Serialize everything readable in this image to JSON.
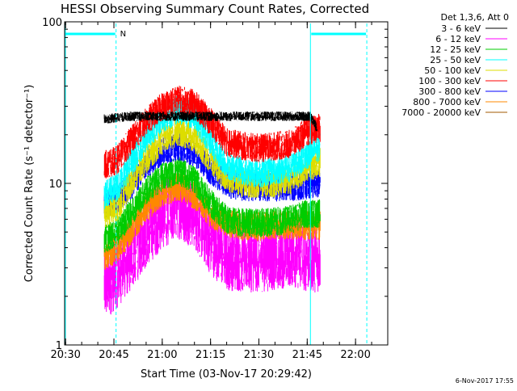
{
  "chart_data": {
    "type": "line",
    "title": "HESSI Observing Summary Count Rates, Corrected",
    "xlabel": "Start Time (03-Nov-17 20:29:42)",
    "ylabel": "Corrected Count Rate (s⁻¹ detector⁻¹)",
    "y_scale": "log",
    "ylim": [
      1,
      100
    ],
    "xlim": [
      "20:29:42",
      "22:10:00"
    ],
    "x_ticks": [
      "20:30",
      "20:45",
      "21:00",
      "21:15",
      "21:30",
      "21:45",
      "22:00"
    ],
    "y_ticks": [
      "1",
      "10",
      "100"
    ],
    "legend_title": "Det 1,3,6, Att 0",
    "legend_position": "right-outside",
    "annotation_n": "N",
    "night_intervals": [
      [
        "20:29:42",
        "20:45:40"
      ],
      [
        "21:46:00",
        "22:03:30"
      ]
    ],
    "night_markers": [
      "20:45:40",
      "21:46:00",
      "22:03:30"
    ],
    "series": [
      {
        "name": "3 - 6 keV",
        "color": "#000000",
        "points": [
          [
            "20:42:00",
            25
          ],
          [
            "20:50:00",
            26
          ],
          [
            "21:00:00",
            26
          ],
          [
            "21:10:00",
            26
          ],
          [
            "21:20:00",
            26
          ],
          [
            "21:30:00",
            26
          ],
          [
            "21:40:00",
            26
          ],
          [
            "21:46:00",
            26
          ],
          [
            "21:48:00",
            22
          ]
        ]
      },
      {
        "name": "6 - 12 keV",
        "color": "#ff00ff",
        "points": [
          [
            "20:42:00",
            2.3
          ],
          [
            "20:46:00",
            2.8
          ],
          [
            "20:50:00",
            3.5
          ],
          [
            "20:55:00",
            5
          ],
          [
            "21:00:00",
            6.5
          ],
          [
            "21:05:00",
            7.5
          ],
          [
            "21:10:00",
            6.5
          ],
          [
            "21:15:00",
            4.5
          ],
          [
            "21:20:00",
            3.6
          ],
          [
            "21:25:00",
            3.5
          ],
          [
            "21:30:00",
            3.5
          ],
          [
            "21:35:00",
            3.6
          ],
          [
            "21:40:00",
            3.8
          ],
          [
            "21:45:00",
            3.5
          ],
          [
            "21:49:00",
            3.5
          ]
        ]
      },
      {
        "name": "12 - 25 keV",
        "color": "#00cc00",
        "points": [
          [
            "20:42:00",
            4.5
          ],
          [
            "20:46:00",
            5
          ],
          [
            "20:50:00",
            6.5
          ],
          [
            "20:55:00",
            9
          ],
          [
            "21:00:00",
            11
          ],
          [
            "21:05:00",
            12
          ],
          [
            "21:10:00",
            10.5
          ],
          [
            "21:15:00",
            7.5
          ],
          [
            "21:20:00",
            6
          ],
          [
            "21:25:00",
            5.7
          ],
          [
            "21:30:00",
            5.7
          ],
          [
            "21:35:00",
            5.8
          ],
          [
            "21:40:00",
            6
          ],
          [
            "21:45:00",
            6.5
          ],
          [
            "21:49:00",
            6.5
          ]
        ]
      },
      {
        "name": "25 - 50 keV",
        "color": "#00ffff",
        "points": [
          [
            "20:42:00",
            8.5
          ],
          [
            "20:46:00",
            9.5
          ],
          [
            "20:50:00",
            13
          ],
          [
            "20:55:00",
            19
          ],
          [
            "21:00:00",
            25
          ],
          [
            "21:05:00",
            29
          ],
          [
            "21:10:00",
            26
          ],
          [
            "21:15:00",
            18
          ],
          [
            "21:20:00",
            13
          ],
          [
            "21:25:00",
            12
          ],
          [
            "21:30:00",
            11.5
          ],
          [
            "21:35:00",
            12
          ],
          [
            "21:40:00",
            12.5
          ],
          [
            "21:45:00",
            15
          ],
          [
            "21:49:00",
            17
          ]
        ]
      },
      {
        "name": "50 - 100 keV",
        "color": "#dddd00",
        "points": [
          [
            "20:42:00",
            6.5
          ],
          [
            "20:46:00",
            7
          ],
          [
            "20:50:00",
            10
          ],
          [
            "20:55:00",
            14
          ],
          [
            "21:00:00",
            18.5
          ],
          [
            "21:05:00",
            21
          ],
          [
            "21:10:00",
            19
          ],
          [
            "21:15:00",
            14
          ],
          [
            "21:20:00",
            11
          ],
          [
            "21:25:00",
            10
          ],
          [
            "21:30:00",
            10
          ],
          [
            "21:35:00",
            10
          ],
          [
            "21:40:00",
            10.5
          ],
          [
            "21:45:00",
            12.5
          ],
          [
            "21:49:00",
            13.5
          ]
        ]
      },
      {
        "name": "100 - 300 keV",
        "color": "#ff0000",
        "points": [
          [
            "20:42:00",
            13
          ],
          [
            "20:46:00",
            14
          ],
          [
            "20:50:00",
            18
          ],
          [
            "20:55:00",
            24
          ],
          [
            "21:00:00",
            30
          ],
          [
            "21:05:00",
            33
          ],
          [
            "21:10:00",
            31
          ],
          [
            "21:15:00",
            24
          ],
          [
            "21:20:00",
            18
          ],
          [
            "21:25:00",
            17
          ],
          [
            "21:30:00",
            16.5
          ],
          [
            "21:35:00",
            17
          ],
          [
            "21:40:00",
            17.5
          ],
          [
            "21:45:00",
            21
          ],
          [
            "21:49:00",
            22
          ]
        ]
      },
      {
        "name": "300 - 800 keV",
        "color": "#0000ff",
        "points": [
          [
            "20:42:00",
            7.5
          ],
          [
            "20:46:00",
            8
          ],
          [
            "20:50:00",
            9.5
          ],
          [
            "20:55:00",
            13
          ],
          [
            "21:00:00",
            16
          ],
          [
            "21:05:00",
            17
          ],
          [
            "21:10:00",
            15.5
          ],
          [
            "21:15:00",
            12
          ],
          [
            "21:20:00",
            10
          ],
          [
            "21:25:00",
            9.5
          ],
          [
            "21:30:00",
            9.5
          ],
          [
            "21:35:00",
            9.5
          ],
          [
            "21:40:00",
            9.5
          ],
          [
            "21:45:00",
            9.8
          ],
          [
            "21:49:00",
            9.8
          ]
        ]
      },
      {
        "name": "800 - 7000 keV",
        "color": "#ff8800",
        "points": [
          [
            "20:42:00",
            3.5
          ],
          [
            "20:46:00",
            4
          ],
          [
            "20:50:00",
            5
          ],
          [
            "20:55:00",
            7
          ],
          [
            "21:00:00",
            8.7
          ],
          [
            "21:05:00",
            9.6
          ],
          [
            "21:10:00",
            8.5
          ],
          [
            "21:15:00",
            6.5
          ],
          [
            "21:20:00",
            5.7
          ],
          [
            "21:25:00",
            5.4
          ],
          [
            "21:30:00",
            5.4
          ],
          [
            "21:35:00",
            5.5
          ],
          [
            "21:40:00",
            5.5
          ],
          [
            "21:45:00",
            5.5
          ],
          [
            "21:49:00",
            5.5
          ]
        ]
      },
      {
        "name": "7000 - 20000 keV",
        "color": "#a05a00",
        "points": []
      }
    ]
  },
  "footer": {
    "generated": "6-Nov-2017 17:55"
  }
}
